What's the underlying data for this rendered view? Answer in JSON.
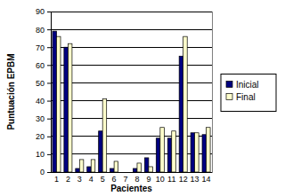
{
  "chart_data": {
    "type": "bar",
    "x_label": "Pacientes",
    "y_label": "Puntuación EPBM",
    "categories": [
      "1",
      "2",
      "3",
      "4",
      "5",
      "6",
      "7",
      "8",
      "9",
      "10",
      "11",
      "12",
      "13",
      "14"
    ],
    "series": [
      {
        "name": "Inicial",
        "color": "#000080",
        "values": [
          79,
          70,
          2,
          3,
          23,
          2,
          0,
          2,
          8,
          19,
          19,
          65,
          22,
          21
        ]
      },
      {
        "name": "Final",
        "color": "#ffffcc",
        "values": [
          76,
          72,
          7,
          7,
          41,
          6,
          0,
          5,
          3,
          25,
          23,
          76,
          22,
          25
        ]
      }
    ],
    "ylim": [
      0,
      90
    ],
    "yticks": [
      0,
      10,
      20,
      30,
      40,
      50,
      60,
      70,
      80,
      90
    ],
    "grid": true,
    "legend": "right"
  }
}
